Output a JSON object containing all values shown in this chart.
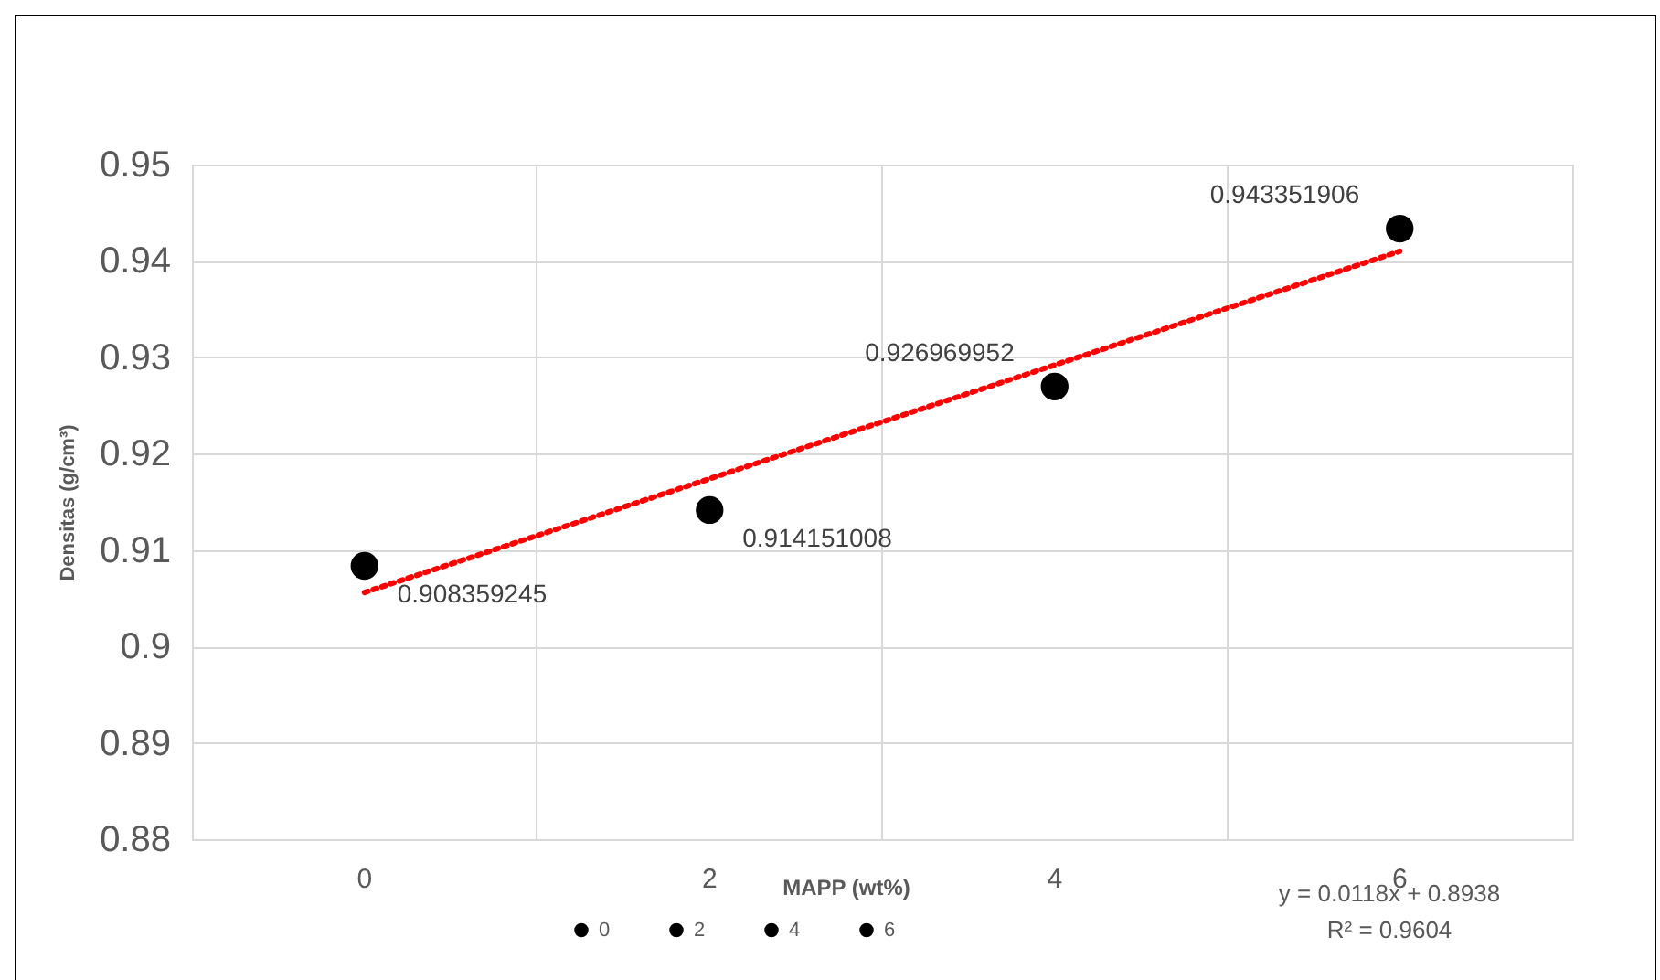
{
  "chart_data": {
    "type": "scatter",
    "xlabel": "MAPP (wt%)",
    "ylabel": "Densitas  (g/cm³)",
    "categories": [
      "0",
      "2",
      "4",
      "6"
    ],
    "ylim": [
      0.88,
      0.95
    ],
    "yticks": [
      0.88,
      0.89,
      0.9,
      0.91,
      0.92,
      0.93,
      0.94,
      0.95
    ],
    "grid": true,
    "legend": "bottom",
    "marker": "circle",
    "series": [
      {
        "name": "0",
        "color": "#000000",
        "values": [
          0.908359245,
          null,
          null,
          null
        ],
        "value_labels": [
          "0.908359245",
          null,
          null,
          null
        ]
      },
      {
        "name": "2",
        "color": "#000000",
        "values": [
          null,
          0.914151008,
          null,
          null
        ],
        "value_labels": [
          null,
          "0.914151008",
          null,
          null
        ]
      },
      {
        "name": "4",
        "color": "#000000",
        "values": [
          null,
          null,
          0.926969952,
          null
        ],
        "value_labels": [
          null,
          null,
          "0.926969952",
          null
        ]
      },
      {
        "name": "6",
        "color": "#000000",
        "values": [
          null,
          null,
          null,
          0.943351906
        ],
        "value_labels": [
          null,
          null,
          null,
          "0.943351906"
        ]
      },
      {
        "type": "line",
        "color": "#ff0000",
        "line_style": "dotted",
        "marker": "none",
        "values": [
          0.9056,
          0.9174,
          0.9292,
          0.941
        ]
      }
    ],
    "annotations": [
      "y = 0.0118x + 0.8938",
      "R² = 0.9604"
    ]
  }
}
